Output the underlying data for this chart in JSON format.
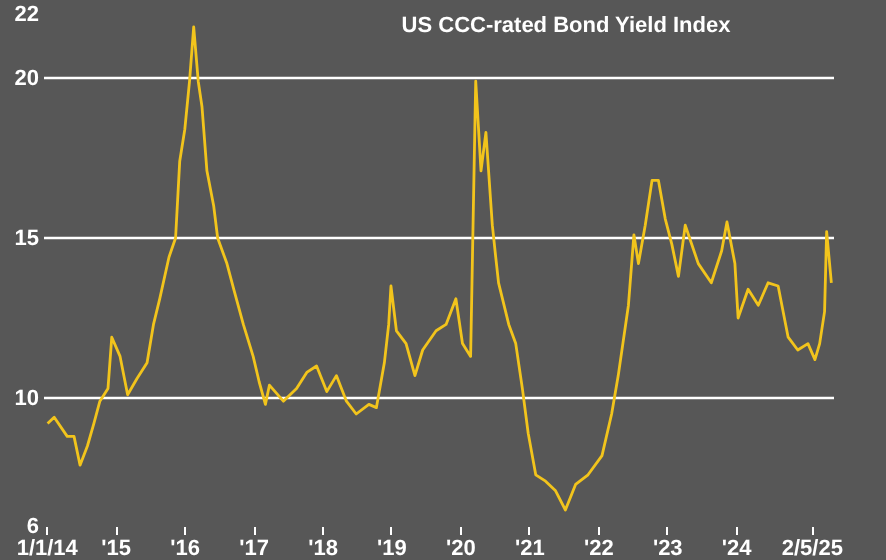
{
  "chart_data": {
    "type": "line",
    "title": "US CCC-rated Bond Yield Index",
    "x": [
      "2014-01-08",
      "2014-02-12",
      "2014-04-22",
      "2014-05-28",
      "2014-06-29",
      "2014-08-07",
      "2014-09-10",
      "2014-10-12",
      "2014-11-24",
      "2014-12-14",
      "2015-01-27",
      "2015-03-08",
      "2015-04-26",
      "2015-06-19",
      "2015-07-23",
      "2015-08-25",
      "2015-10-13",
      "2015-11-17",
      "2015-12-09",
      "2016-01-05",
      "2016-01-30",
      "2016-02-21",
      "2016-03-16",
      "2016-04-05",
      "2016-05-01",
      "2016-06-06",
      "2016-06-27",
      "2016-08-15",
      "2016-09-20",
      "2016-11-10",
      "2017-01-01",
      "2017-02-02",
      "2017-03-07",
      "2017-03-28",
      "2017-06-10",
      "2017-08-19",
      "2017-10-12",
      "2017-12-03",
      "2018-01-26",
      "2018-03-18",
      "2018-05-10",
      "2018-07-01",
      "2018-09-06",
      "2018-10-16",
      "2018-11-27",
      "2018-12-20",
      "2019-01-01",
      "2019-01-30",
      "2019-03-22",
      "2019-05-08",
      "2019-06-18",
      "2019-08-28",
      "2019-10-20",
      "2019-12-11",
      "2020-01-15",
      "2020-02-27",
      "2020-03-25",
      "2020-04-22",
      "2020-05-18",
      "2020-06-21",
      "2020-07-09",
      "2020-07-24",
      "2020-09-16",
      "2020-10-23",
      "2020-11-27",
      "2020-12-28",
      "2021-02-06",
      "2021-03-30",
      "2021-05-22",
      "2021-07-13",
      "2021-09-05",
      "2021-11-10",
      "2022-01-23",
      "2022-03-15",
      "2022-04-19",
      "2022-06-12",
      "2022-07-11",
      "2022-08-04",
      "2022-09-09",
      "2022-10-15",
      "2022-11-18",
      "2022-12-24",
      "2023-01-28",
      "2023-03-04",
      "2023-04-09",
      "2023-06-17",
      "2023-08-25",
      "2023-10-19",
      "2023-11-16",
      "2023-12-28",
      "2024-01-14",
      "2024-03-07",
      "2024-04-30",
      "2024-06-21",
      "2024-08-13",
      "2024-10-05",
      "2024-11-25",
      "2025-01-18",
      "2025-02-24",
      "2025-03-21",
      "2025-04-16",
      "2025-04-27",
      "2025-05-22"
    ],
    "series": [
      {
        "color": "#f2c41c",
        "values": [
          9.2,
          9.4,
          8.8,
          8.8,
          7.9,
          8.5,
          9.2,
          9.9,
          10.3,
          11.9,
          11.3,
          10.1,
          10.6,
          11.1,
          12.3,
          13.1,
          14.4,
          15.0,
          17.4,
          18.4,
          19.9,
          21.6,
          19.9,
          19.1,
          17.1,
          16.0,
          15.0,
          14.2,
          13.4,
          12.3,
          11.3,
          10.5,
          9.8,
          10.4,
          9.9,
          10.3,
          10.8,
          11.0,
          10.2,
          10.7,
          9.9,
          9.5,
          9.8,
          9.7,
          11.1,
          12.3,
          13.5,
          12.1,
          11.7,
          10.7,
          11.5,
          12.1,
          12.3,
          13.1,
          11.7,
          11.3,
          19.9,
          17.1,
          18.3,
          15.4,
          14.4,
          13.6,
          12.3,
          11.7,
          10.3,
          8.9,
          7.6,
          7.4,
          7.1,
          6.5,
          7.3,
          7.6,
          8.2,
          9.5,
          10.7,
          12.9,
          15.1,
          14.2,
          15.4,
          16.8,
          16.8,
          15.6,
          14.8,
          13.8,
          15.4,
          14.2,
          13.6,
          14.6,
          15.5,
          14.2,
          12.5,
          13.4,
          12.9,
          13.6,
          13.5,
          11.9,
          11.5,
          11.7,
          11.2,
          11.7,
          12.7,
          15.2,
          13.6
        ]
      }
    ],
    "xlim": [
      "2013-12-20",
      "2025-06-05"
    ],
    "xticks": [
      {
        "value": "2014-01-01",
        "label": "1/1/14"
      },
      {
        "value": "2015-01-01",
        "label": "'15"
      },
      {
        "value": "2016-01-01",
        "label": "'16"
      },
      {
        "value": "2017-01-01",
        "label": "'17"
      },
      {
        "value": "2018-01-01",
        "label": "'18"
      },
      {
        "value": "2019-01-01",
        "label": "'19"
      },
      {
        "value": "2020-01-01",
        "label": "'20"
      },
      {
        "value": "2021-01-01",
        "label": "'21"
      },
      {
        "value": "2022-01-01",
        "label": "'22"
      },
      {
        "value": "2023-01-01",
        "label": "'23"
      },
      {
        "value": "2024-01-01",
        "label": "'24"
      },
      {
        "value": "2025-02-05",
        "label": "2/5/25"
      }
    ],
    "ylim": [
      6,
      22
    ],
    "yticks": [
      6,
      10,
      15,
      20,
      22
    ],
    "grid": "y"
  }
}
